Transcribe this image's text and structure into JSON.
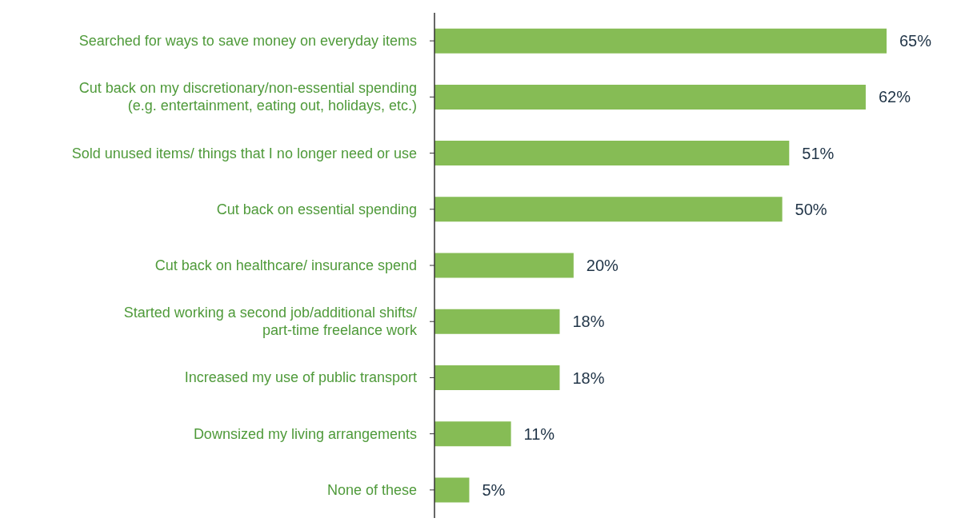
{
  "chart_data": {
    "type": "bar",
    "orientation": "horizontal",
    "categories": [
      "Searched for ways to save money on everyday items",
      "Cut back on my discretionary/non-essential spending (e.g. entertainment, eating out, holidays, etc.)",
      "Sold unused items/ things that I no longer need or use",
      "Cut back on essential spending",
      "Cut back on healthcare/ insurance spend",
      "Started working a second job/additional shifts/ part-time freelance work",
      "Increased my use of public transport",
      "Downsized my living arrangements",
      "None of these"
    ],
    "values": [
      65,
      62,
      51,
      50,
      20,
      18,
      18,
      11,
      5
    ],
    "value_labels": [
      "65%",
      "62%",
      "51%",
      "50%",
      "20%",
      "18%",
      "18%",
      "11%",
      "5%"
    ],
    "color": "#86bc55",
    "grid": false,
    "legend": false
  }
}
